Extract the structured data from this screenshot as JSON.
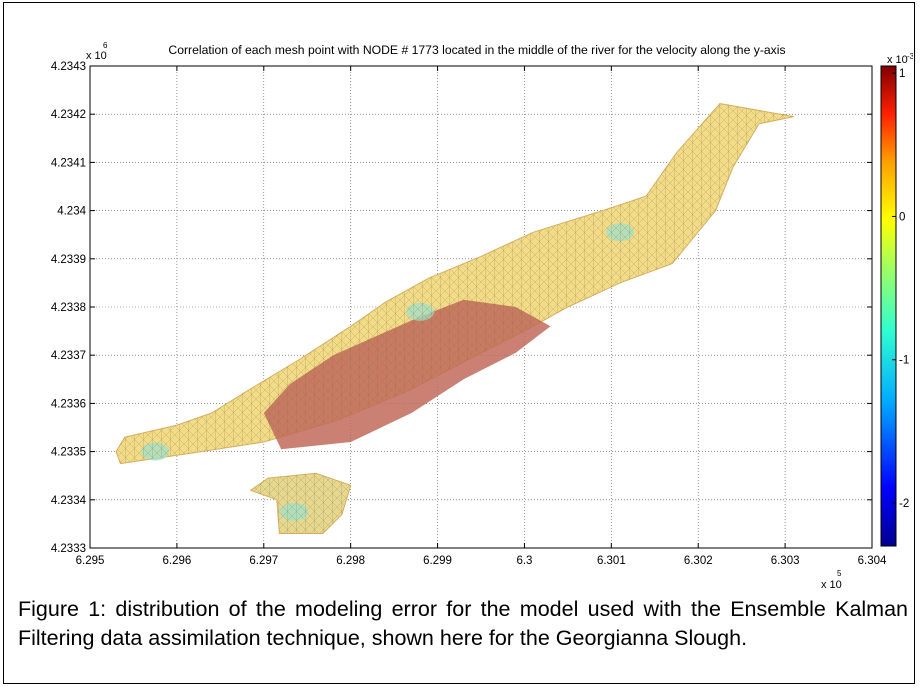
{
  "figure": {
    "caption": "Figure 1: distribution of the modeling error for the model used with the Ensemble Kalman Filtering data assimilation technique, shown here for the Georgianna Slough."
  },
  "chart_data": {
    "type": "heatmap",
    "title": "Correlation of each mesh point with NODE # 1773 located in the middle of the river for the velocity along the y-axis",
    "xlabel": "",
    "ylabel": "",
    "x_exponent_label": "x 10",
    "x_exponent": "5",
    "y_exponent_label": "x 10",
    "y_exponent": "6",
    "xlim": [
      629500,
      630400
    ],
    "ylim": [
      4233300,
      4234300
    ],
    "x_ticks": [
      629500,
      629600,
      629700,
      629800,
      629900,
      630000,
      630100,
      630200,
      630300,
      630400
    ],
    "x_tick_labels": [
      "6.295",
      "6.296",
      "6.297",
      "6.298",
      "6.299",
      "6.3",
      "6.301",
      "6.302",
      "6.303",
      "6.304"
    ],
    "y_ticks": [
      4233300,
      4233400,
      4233500,
      4233600,
      4233700,
      4233800,
      4233900,
      4234000,
      4234100,
      4234200,
      4234300
    ],
    "y_tick_labels": [
      "4.2333",
      "4.2334",
      "4.2335",
      "4.2336",
      "4.2337",
      "4.2338",
      "4.2339",
      "4.234",
      "4.2341",
      "4.2342",
      "4.2343"
    ],
    "grid": true,
    "colorbar": {
      "exponent_label": "x 10",
      "exponent": "-3",
      "ticks": [
        1,
        0,
        -1,
        -2
      ],
      "tick_labels": [
        "1",
        "0",
        "-1",
        "-2"
      ],
      "range": [
        -2.3,
        1.05
      ],
      "colormap": "jet"
    },
    "river_outline": [
      [
        629535,
        4233475
      ],
      [
        629610,
        4233495
      ],
      [
        629700,
        4233520
      ],
      [
        629785,
        4233565
      ],
      [
        629865,
        4233625
      ],
      [
        629940,
        4233695
      ],
      [
        630000,
        4233750
      ],
      [
        630050,
        4233800
      ],
      [
        630110,
        4233850
      ],
      [
        630170,
        4233890
      ],
      [
        630220,
        4234000
      ],
      [
        630240,
        4234090
      ],
      [
        630270,
        4234180
      ],
      [
        630310,
        4234195
      ],
      [
        630225,
        4234222
      ],
      [
        630175,
        4234120
      ],
      [
        630140,
        4234030
      ],
      [
        630090,
        4234000
      ],
      [
        630010,
        4233955
      ],
      [
        629950,
        4233905
      ],
      [
        629890,
        4233860
      ],
      [
        629840,
        4233810
      ],
      [
        629800,
        4233760
      ],
      [
        629740,
        4233690
      ],
      [
        629680,
        4233625
      ],
      [
        629640,
        4233580
      ],
      [
        629600,
        4233555
      ],
      [
        629540,
        4233530
      ],
      [
        629530,
        4233500
      ]
    ],
    "tributary_outline": [
      [
        629685,
        4233420
      ],
      [
        629705,
        4233445
      ],
      [
        629760,
        4233455
      ],
      [
        629800,
        4233430
      ],
      [
        629790,
        4233370
      ],
      [
        629768,
        4233330
      ],
      [
        629718,
        4233330
      ],
      [
        629715,
        4233400
      ]
    ],
    "lower_bank_outline": [
      [
        629550,
        4233405
      ],
      [
        629600,
        4233440
      ],
      [
        629700,
        4233445
      ],
      [
        629785,
        4233460
      ],
      [
        629850,
        4233540
      ],
      [
        629900,
        4233610
      ],
      [
        629960,
        4233680
      ],
      [
        630020,
        4233750
      ],
      [
        630080,
        4233810
      ],
      [
        630140,
        4233870
      ],
      [
        630210,
        4233990
      ],
      [
        630260,
        4234090
      ],
      [
        630315,
        4234200
      ],
      [
        630240,
        4234230
      ],
      [
        630110,
        4234050
      ],
      [
        629990,
        4233940
      ],
      [
        629880,
        4233850
      ],
      [
        629790,
        4233760
      ],
      [
        629700,
        4233650
      ],
      [
        629610,
        4233580
      ],
      [
        629530,
        4233520
      ]
    ],
    "high_correlation_zone": [
      [
        629720,
        4233505
      ],
      [
        629800,
        4233520
      ],
      [
        629870,
        4233580
      ],
      [
        629930,
        4233650
      ],
      [
        629990,
        4233705
      ],
      [
        630030,
        4233760
      ],
      [
        629990,
        4233800
      ],
      [
        629930,
        4233815
      ],
      [
        629880,
        4233780
      ],
      [
        629830,
        4233740
      ],
      [
        629780,
        4233700
      ],
      [
        629730,
        4233640
      ],
      [
        629700,
        4233580
      ]
    ],
    "low_correlation_patches": [
      [
        629575,
        4233500
      ],
      [
        629735,
        4233375
      ],
      [
        630110,
        4233955
      ],
      [
        629880,
        4233790
      ]
    ]
  }
}
